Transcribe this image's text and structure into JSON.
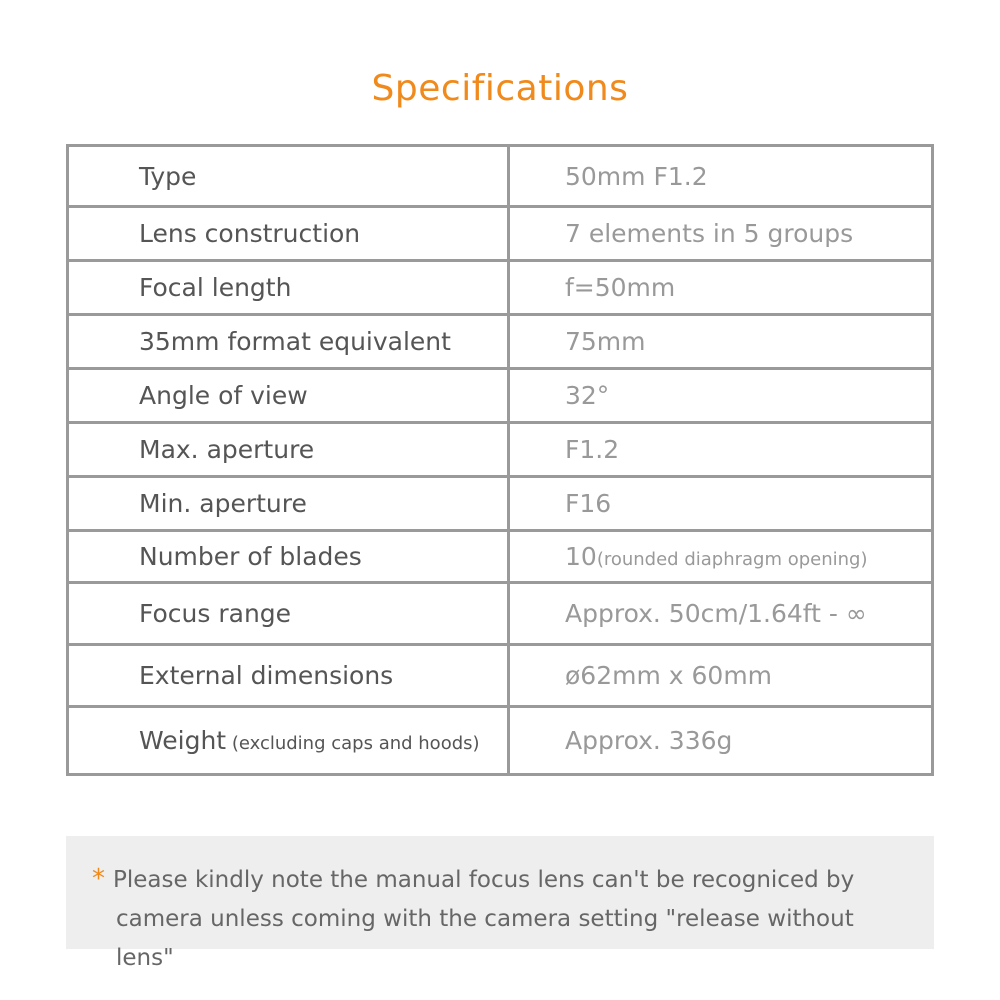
{
  "title": "Specifications",
  "accent_color": "#f08a1c",
  "specs": [
    {
      "label": "Type",
      "value": "50mm F1.2"
    },
    {
      "label": "Lens construction",
      "value": "7 elements in 5 groups"
    },
    {
      "label": "Focal length",
      "value": "f=50mm"
    },
    {
      "label": "35mm format equivalent",
      "value": "75mm"
    },
    {
      "label": "Angle of view",
      "value": "32°"
    },
    {
      "label": "Max. aperture",
      "value": "F1.2"
    },
    {
      "label": "Min. aperture",
      "value": "F16"
    },
    {
      "label": "Number of blades",
      "value": "10",
      "value_note": "(rounded diaphragm opening)"
    },
    {
      "label": "Focus range",
      "value": "Approx. 50cm/1.64ft - ∞"
    },
    {
      "label": "External dimensions",
      "value": "ø62mm x 60mm"
    },
    {
      "label": "Weight",
      "label_note": " (excluding caps and hoods)",
      "value": "Approx. 336g"
    }
  ],
  "note": {
    "marker": "*",
    "line1": "Please kindly note the manual focus lens can't be recogniced by",
    "line2": "camera unless coming with the camera setting \"release without lens\""
  }
}
